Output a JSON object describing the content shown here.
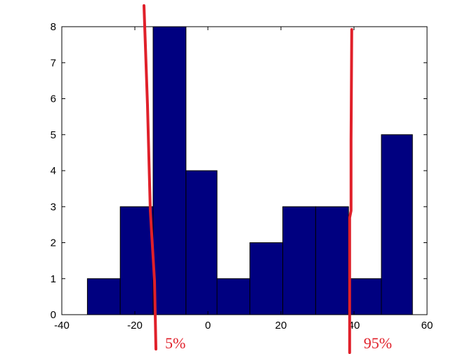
{
  "chart_data": {
    "type": "bar",
    "title": "",
    "xlabel": "",
    "ylabel": "",
    "xlim": [
      -40,
      60
    ],
    "ylim": [
      0,
      8
    ],
    "xticks": [
      -40,
      -20,
      0,
      20,
      40,
      60
    ],
    "yticks": [
      0,
      1,
      2,
      3,
      4,
      5,
      6,
      7,
      8
    ],
    "grid": false,
    "bar_color": "#000080",
    "bins": [
      {
        "x_start": -33,
        "x_end": -24,
        "count": 1
      },
      {
        "x_start": -24,
        "x_end": -15,
        "count": 3
      },
      {
        "x_start": -15,
        "x_end": -6,
        "count": 8
      },
      {
        "x_start": -6,
        "x_end": 2.5,
        "count": 4
      },
      {
        "x_start": 2.5,
        "x_end": 11.5,
        "count": 1
      },
      {
        "x_start": 11.5,
        "x_end": 20.5,
        "count": 2
      },
      {
        "x_start": 20.5,
        "x_end": 29.5,
        "count": 3
      },
      {
        "x_start": 29.5,
        "x_end": 38.5,
        "count": 3
      },
      {
        "x_start": 38.5,
        "x_end": 47.5,
        "count": 1
      },
      {
        "x_start": 47.5,
        "x_end": 56,
        "count": 5
      }
    ],
    "annotations": [
      {
        "label": "5%",
        "x": -15,
        "color": "#e0202a"
      },
      {
        "label": "95%",
        "x": 39,
        "color": "#e0202a"
      }
    ]
  }
}
